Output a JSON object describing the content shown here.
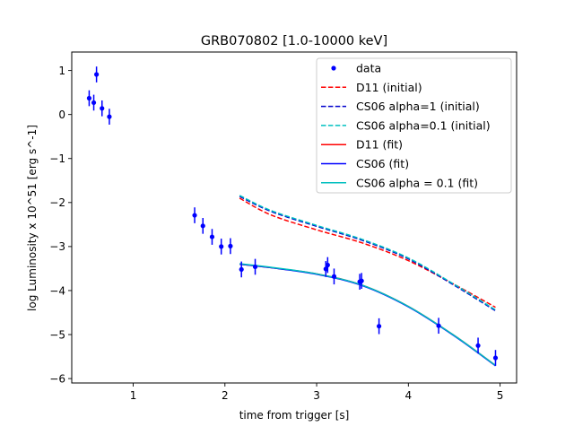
{
  "chart_data": {
    "type": "line",
    "title": "GRB070802 [1.0-10000 keV]",
    "xlabel": "time from trigger [s]",
    "ylabel": "log Luminosity x 10^51 [erg s^-1]",
    "xlim": [
      0.33,
      5.18
    ],
    "ylim": [
      -6.1,
      1.42
    ],
    "xticks": [
      1,
      2,
      3,
      4,
      5
    ],
    "xtick_labels": [
      "1",
      "2",
      "3",
      "4",
      "5"
    ],
    "yticks": [
      -6,
      -5,
      -4,
      -3,
      -2,
      -1,
      0,
      1
    ],
    "ytick_labels": [
      "−6",
      "−5",
      "−4",
      "−3",
      "−2",
      "−1",
      "0",
      "1"
    ],
    "grid": false,
    "legend_position": "top-right",
    "data_points": {
      "name": "data",
      "color": "#0000ff",
      "x": [
        0.52,
        0.57,
        0.6,
        0.66,
        0.74,
        1.67,
        1.76,
        1.86,
        1.96,
        2.06,
        2.18,
        2.33,
        3.1,
        3.12,
        3.19,
        3.47,
        3.49,
        3.68,
        4.33,
        4.76,
        4.95
      ],
      "y": [
        0.37,
        0.27,
        0.91,
        0.14,
        -0.05,
        -2.29,
        -2.53,
        -2.78,
        -3.0,
        -2.99,
        -3.52,
        -3.46,
        -3.51,
        -3.42,
        -3.68,
        -3.8,
        -3.78,
        -4.81,
        -4.8,
        -5.25,
        -5.53
      ],
      "err": [
        0.18,
        0.18,
        0.18,
        0.18,
        0.18,
        0.18,
        0.18,
        0.18,
        0.18,
        0.18,
        0.18,
        0.18,
        0.18,
        0.18,
        0.18,
        0.18,
        0.18,
        0.18,
        0.18,
        0.18,
        0.18
      ]
    },
    "series": [
      {
        "name": "D11 (initial)",
        "color": "#ff0000",
        "dash": true,
        "x": [
          2.16,
          2.5,
          3.0,
          3.5,
          4.0,
          4.5,
          4.95
        ],
        "y": [
          -1.9,
          -2.28,
          -2.62,
          -2.92,
          -3.32,
          -3.86,
          -4.38
        ]
      },
      {
        "name": "CS06 alpha=1 (initial)",
        "color": "#0000cc",
        "dash": true,
        "x": [
          2.16,
          2.5,
          3.0,
          3.5,
          4.0,
          4.5,
          4.95
        ],
        "y": [
          -1.86,
          -2.2,
          -2.54,
          -2.86,
          -3.28,
          -3.88,
          -4.46
        ]
      },
      {
        "name": "CS06 alpha=0.1 (initial)",
        "color": "#00c0c0",
        "dash": true,
        "x": [
          2.16,
          2.5,
          3.0,
          3.5,
          4.0,
          4.5,
          4.95
        ],
        "y": [
          -1.84,
          -2.18,
          -2.52,
          -2.84,
          -3.26,
          -3.86,
          -4.44
        ]
      },
      {
        "name": "D11 (fit)",
        "color": "#ff0000",
        "dash": false,
        "x": [
          2.16,
          2.5,
          3.0,
          3.5,
          4.0,
          4.5,
          4.95
        ],
        "y": [
          -3.4,
          -3.48,
          -3.62,
          -3.88,
          -4.36,
          -5.02,
          -5.7
        ]
      },
      {
        "name": "CS06 (fit)",
        "color": "#0000ff",
        "dash": false,
        "x": [
          2.16,
          2.5,
          3.0,
          3.5,
          4.0,
          4.5,
          4.95
        ],
        "y": [
          -3.4,
          -3.48,
          -3.63,
          -3.89,
          -4.37,
          -5.03,
          -5.71
        ]
      },
      {
        "name": "CS06 alpha = 0.1 (fit)",
        "color": "#00bfbf",
        "dash": false,
        "x": [
          2.16,
          2.5,
          3.0,
          3.5,
          4.0,
          4.5,
          4.95
        ],
        "y": [
          -3.39,
          -3.47,
          -3.62,
          -3.88,
          -4.36,
          -5.02,
          -5.7
        ]
      }
    ]
  }
}
